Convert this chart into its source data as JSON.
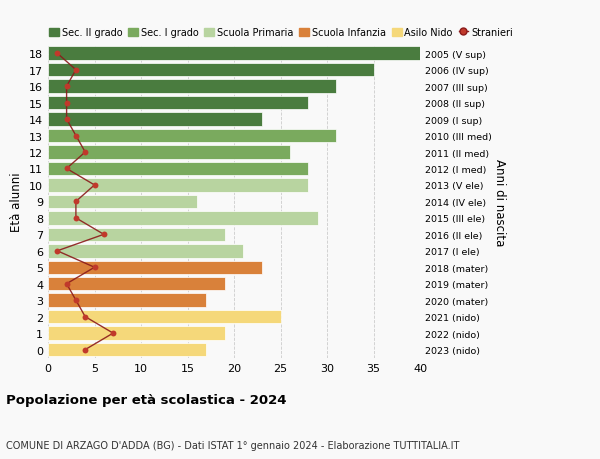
{
  "ages": [
    18,
    17,
    16,
    15,
    14,
    13,
    12,
    11,
    10,
    9,
    8,
    7,
    6,
    5,
    4,
    3,
    2,
    1,
    0
  ],
  "right_labels": [
    "2005 (V sup)",
    "2006 (IV sup)",
    "2007 (III sup)",
    "2008 (II sup)",
    "2009 (I sup)",
    "2010 (III med)",
    "2011 (II med)",
    "2012 (I med)",
    "2013 (V ele)",
    "2014 (IV ele)",
    "2015 (III ele)",
    "2016 (II ele)",
    "2017 (I ele)",
    "2018 (mater)",
    "2019 (mater)",
    "2020 (mater)",
    "2021 (nido)",
    "2022 (nido)",
    "2023 (nido)"
  ],
  "bar_values": [
    41,
    35,
    31,
    28,
    23,
    31,
    26,
    28,
    28,
    16,
    29,
    19,
    21,
    23,
    19,
    17,
    25,
    19,
    17
  ],
  "bar_colors": [
    "#4a7c3f",
    "#4a7c3f",
    "#4a7c3f",
    "#4a7c3f",
    "#4a7c3f",
    "#7aaa5e",
    "#7aaa5e",
    "#7aaa5e",
    "#b8d4a0",
    "#b8d4a0",
    "#b8d4a0",
    "#b8d4a0",
    "#b8d4a0",
    "#d9813a",
    "#d9813a",
    "#d9813a",
    "#f5d87a",
    "#f5d87a",
    "#f5d87a"
  ],
  "stranieri_values": [
    1,
    3,
    2,
    2,
    2,
    3,
    4,
    2,
    5,
    3,
    3,
    6,
    1,
    5,
    2,
    3,
    4,
    7,
    4
  ],
  "legend_labels": [
    "Sec. II grado",
    "Sec. I grado",
    "Scuola Primaria",
    "Scuola Infanzia",
    "Asilo Nido",
    "Stranieri"
  ],
  "legend_colors": [
    "#4a7c3f",
    "#7aaa5e",
    "#b8d4a0",
    "#d9813a",
    "#f5d87a",
    "#c0392b"
  ],
  "title": "Popolazione per età scolastica - 2024",
  "subtitle": "COMUNE DI ARZAGO D'ADDA (BG) - Dati ISTAT 1° gennaio 2024 - Elaborazione TUTTITALIA.IT",
  "ylabel": "Età alunni",
  "right_ylabel": "Anni di nascita",
  "xlim": [
    0,
    40
  ],
  "xticks": [
    0,
    5,
    10,
    15,
    20,
    25,
    30,
    35,
    40
  ],
  "bg_color": "#f9f9f9",
  "stranieri_line_color": "#8b1a1a",
  "stranieri_dot_color": "#c0392b"
}
